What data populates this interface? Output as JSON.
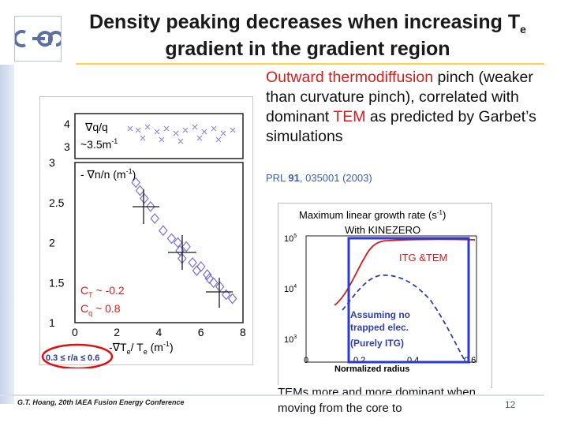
{
  "header": {
    "title_line1": "Density peaking decreases when increasing T",
    "title_sub": "e",
    "title_line2": "gradient in the gradient region"
  },
  "description": {
    "part1_red": "Outward thermodiffusion",
    "part1_rest": " pinch (weaker than curvature pinch), correlated with dominant ",
    "part2_red": "TEM",
    "part2_rest": " as predicted by Garbet’s simulations"
  },
  "reference": {
    "journal": "PRL ",
    "volume": "91",
    "rest": ", 035001 (2003)"
  },
  "left_plot": {
    "top_panel": {
      "label_nabla": "∇q/q",
      "value_label": "~3.5m",
      "value_exp": "-1",
      "y_ticks": [
        "4",
        "3"
      ]
    },
    "bottom_panel": {
      "label": "- ∇n/n (m",
      "label_exp": "-1",
      "label_close": ")",
      "y_ticks": [
        "3",
        "2.5",
        "2",
        "1.5",
        "1"
      ],
      "x_ticks": [
        "0",
        "2",
        "4",
        "6",
        "8"
      ],
      "x_label": "-∇T",
      "x_label_sub1": "e",
      "x_label_mid": "/ T",
      "x_label_sub2": "e",
      "x_label_unit": " (m",
      "x_label_exp": "-1",
      "x_label_close": ")",
      "ct_label": "C",
      "ct_sub": "T",
      "ct_val": " ~ -0.2",
      "cq_label": "C",
      "cq_sub": "q",
      "cq_val": " ~ 0.8",
      "range_label": "0.3 ≤ r/a ≤ 0.6"
    }
  },
  "chart_data": {
    "type": "scatter",
    "x": [
      3.1,
      3.3,
      3.6,
      2.9,
      3.8,
      4.2,
      4.6,
      5.0,
      5.3,
      5.1,
      5.6,
      6.0,
      6.3,
      6.6,
      6.9,
      7.2,
      7.5,
      5.8,
      4.9,
      6.4
    ],
    "y": [
      2.65,
      2.55,
      2.45,
      2.75,
      2.3,
      2.15,
      2.05,
      1.9,
      1.95,
      1.8,
      1.75,
      1.7,
      1.6,
      1.5,
      1.45,
      1.35,
      1.3,
      1.65,
      2.0,
      1.55
    ],
    "xlim": [
      0,
      8
    ],
    "ylim": [
      1,
      3
    ],
    "xlabel": "-∇Te / Te (m-1)",
    "ylabel": "- ∇n/n (m-1)",
    "colors": {
      "markers": "#7b70d8"
    }
  },
  "growth_plot": {
    "title": "Maximum linear growth rate (s",
    "title_exp": "-1",
    "title_close": ")",
    "subtitle": "With KINEZERO",
    "y_ticks": [
      "10",
      "10",
      "10"
    ],
    "y_exps": [
      "5",
      "4",
      "3"
    ],
    "x_ticks": [
      "0",
      "0.2",
      "0.4",
      "0.6"
    ],
    "x_label": "Normalized radius",
    "label_itg_tem": "ITG &TEM",
    "label_assume1": "Assuming no",
    "label_assume2": "trapped elec.",
    "label_assume3": "(Purely ITG)"
  },
  "caption": "TEMs more and more dominant when moving from the core to",
  "footer": {
    "text": "G.T. Hoang, 20th IAEA Fusion Energy Conference",
    "page": "12"
  }
}
